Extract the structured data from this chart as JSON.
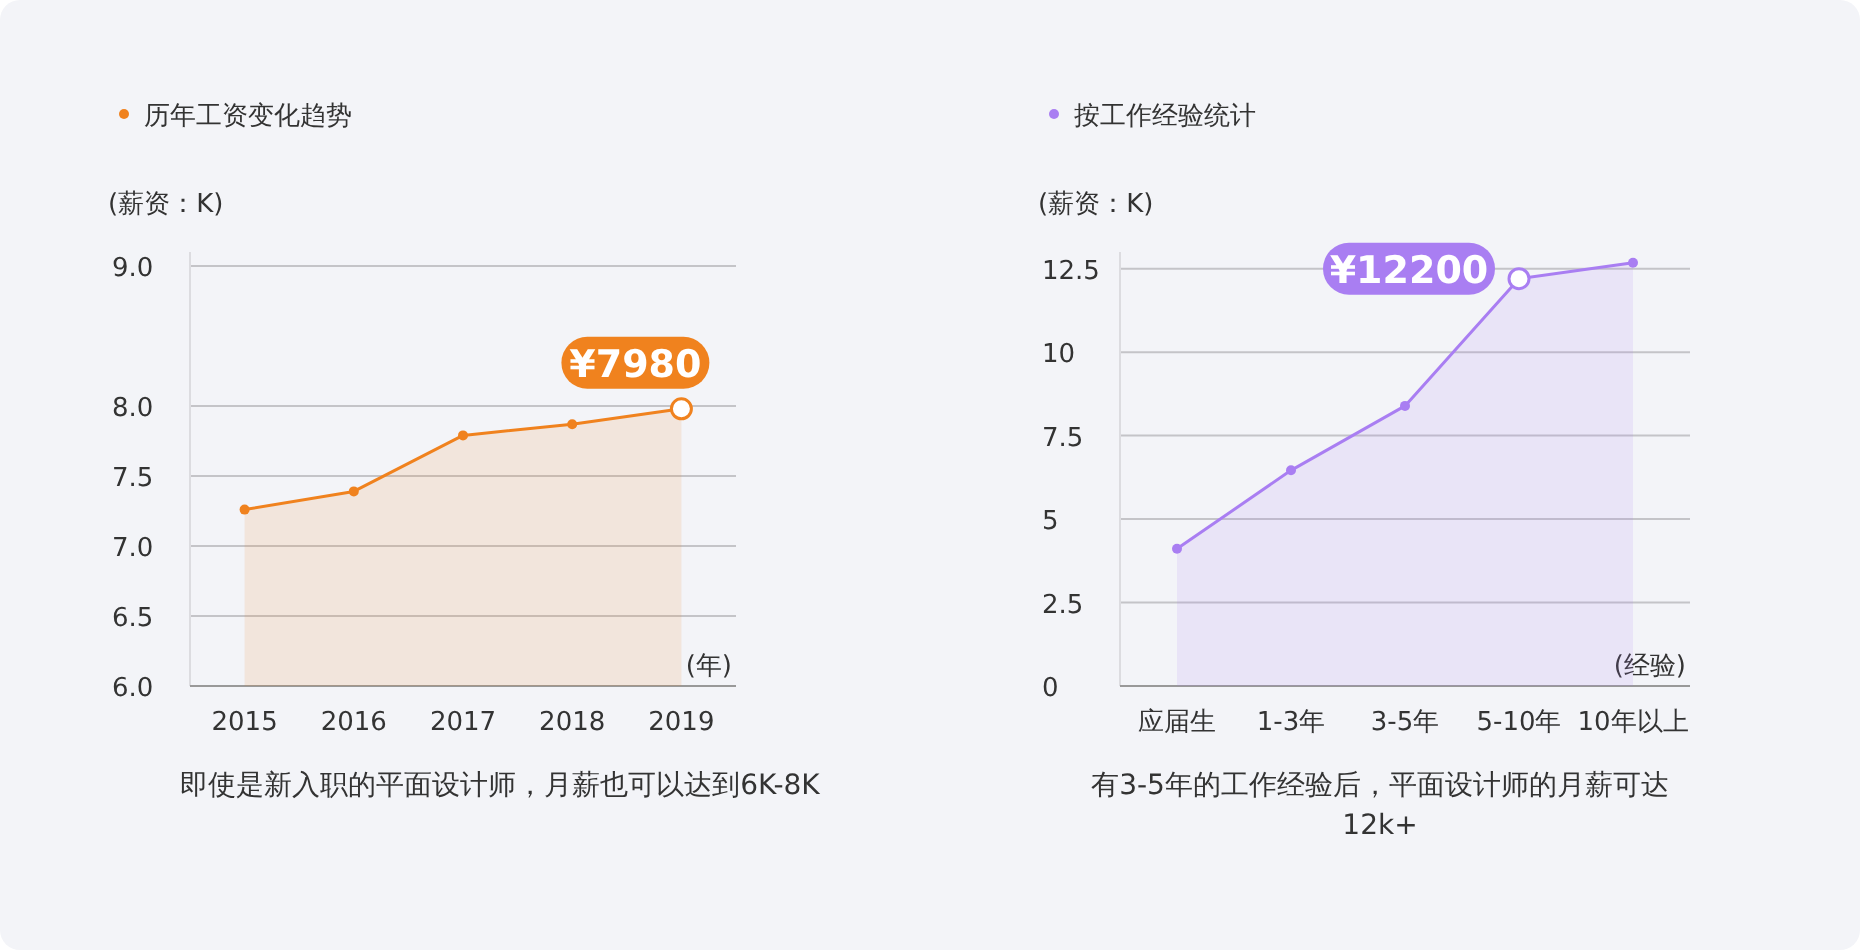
{
  "chart_data": [
    {
      "type": "area",
      "title": "历年工资变化趋势",
      "ylabel": "(薪资：K)",
      "xlabel": "(年)",
      "categories": [
        "2015",
        "2016",
        "2017",
        "2018",
        "2019"
      ],
      "series": [
        {
          "color": "#f0821e",
          "values": [
            7.26,
            7.39,
            7.79,
            7.87,
            7.98
          ]
        }
      ],
      "ylim": [
        6,
        9.1
      ],
      "yticks": [
        {
          "value": 6,
          "label": "6.0"
        },
        6.5,
        {
          "value": 7,
          "label": "7.0"
        },
        7.5,
        {
          "value": 8,
          "label": "8.0"
        },
        {
          "value": 9,
          "label": "9.0"
        }
      ],
      "grid": "y",
      "marker": "circle",
      "annotations": [
        {
          "text": "¥7980",
          "x": "2019",
          "y": 7.98
        },
        "即使是新入职的平面设计师，月薪也可以达到6K-8K"
      ]
    },
    {
      "type": "area",
      "title": "按工作经验统计",
      "ylabel": "(薪资：K)",
      "xlabel": "(经验)",
      "categories": [
        "应届生",
        "1-3年",
        "3-5年",
        "5-10年",
        "10年以上"
      ],
      "series": [
        {
          "color": "#a97ef2",
          "values": [
            4.11,
            6.46,
            8.39,
            12.2,
            12.68
          ]
        }
      ],
      "ylim": [
        0,
        13
      ],
      "yticks": [
        0,
        2.5,
        5,
        7.5,
        10,
        12.5
      ],
      "grid": "y",
      "marker": "circle",
      "annotations": [
        {
          "text": "¥12200",
          "x": "5-10年",
          "y": 12.2
        },
        "有3-5年的工作经验后，平面设计师的月薪可达12k+"
      ]
    }
  ]
}
